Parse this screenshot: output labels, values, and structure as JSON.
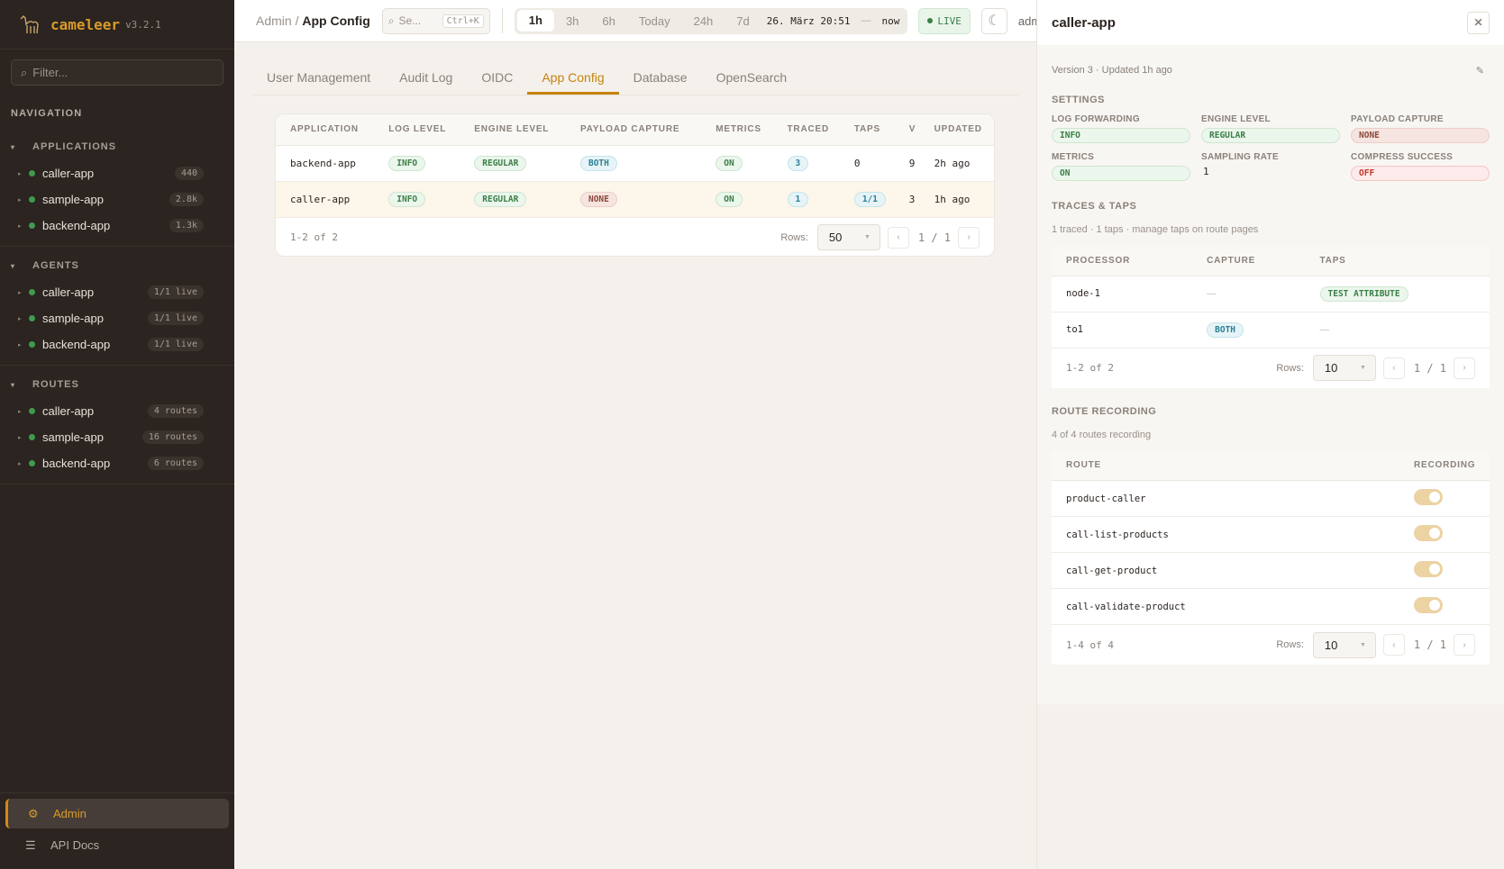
{
  "app": {
    "name": "cameleer",
    "version": "v3.2.1"
  },
  "sidebar": {
    "filter_placeholder": "Filter...",
    "nav_label": "NAVIGATION",
    "sections": [
      {
        "title": "APPLICATIONS",
        "items": [
          {
            "label": "caller-app",
            "badge": "440"
          },
          {
            "label": "sample-app",
            "badge": "2.8k"
          },
          {
            "label": "backend-app",
            "badge": "1.3k"
          }
        ]
      },
      {
        "title": "AGENTS",
        "items": [
          {
            "label": "caller-app",
            "badge": "1/1 live"
          },
          {
            "label": "sample-app",
            "badge": "1/1 live"
          },
          {
            "label": "backend-app",
            "badge": "1/1 live"
          }
        ]
      },
      {
        "title": "ROUTES",
        "items": [
          {
            "label": "caller-app",
            "badge": "4 routes"
          },
          {
            "label": "sample-app",
            "badge": "16 routes"
          },
          {
            "label": "backend-app",
            "badge": "6 routes"
          }
        ]
      }
    ],
    "bottom": [
      {
        "label": "Admin",
        "icon": "gear-icon",
        "active": true
      },
      {
        "label": "API Docs",
        "icon": "list-icon"
      }
    ]
  },
  "header": {
    "breadcrumb": [
      "Admin",
      "App Config"
    ],
    "search_placeholder": "Se...",
    "search_shortcut": "Ctrl+K",
    "time_ranges": [
      "1h",
      "3h",
      "6h",
      "Today",
      "24h",
      "7d"
    ],
    "time_active": "1h",
    "date_from": "26. März 20:51",
    "date_sep": "—",
    "date_to": "now",
    "live": "LIVE",
    "user": "adm"
  },
  "tabs": [
    "User Management",
    "Audit Log",
    "OIDC",
    "App Config",
    "Database",
    "OpenSearch"
  ],
  "active_tab": "App Config",
  "table": {
    "columns": [
      "APPLICATION",
      "LOG LEVEL",
      "ENGINE LEVEL",
      "PAYLOAD CAPTURE",
      "METRICS",
      "TRACED",
      "TAPS",
      "V",
      "UPDATED"
    ],
    "rows": [
      {
        "app": "backend-app",
        "log": "INFO",
        "engine": "REGULAR",
        "payload": "BOTH",
        "metrics": "ON",
        "traced": "3",
        "taps": "0",
        "v": "9",
        "updated": "2h ago"
      },
      {
        "app": "caller-app",
        "log": "INFO",
        "engine": "REGULAR",
        "payload": "NONE",
        "metrics": "ON",
        "traced": "1",
        "taps": "1/1",
        "v": "3",
        "updated": "1h ago"
      }
    ],
    "range": "1-2 of 2",
    "rows_label": "Rows:",
    "rows_value": "50",
    "page": "1 / 1"
  },
  "panel": {
    "title": "caller-app",
    "meta": "Version 3 · Updated 1h  ago",
    "settings_title": "SETTINGS",
    "settings": [
      {
        "label": "LOG FORWARDING",
        "value": "INFO"
      },
      {
        "label": "ENGINE LEVEL",
        "value": "REGULAR"
      },
      {
        "label": "PAYLOAD CAPTURE",
        "value": "NONE"
      },
      {
        "label": "METRICS",
        "value": "ON"
      },
      {
        "label": "SAMPLING RATE",
        "value": "1"
      },
      {
        "label": "COMPRESS SUCCESS",
        "value": "OFF"
      }
    ],
    "traces_title": "TRACES & TAPS",
    "traces_sub": "1 traced · 1 taps · manage taps on route pages",
    "traces_columns": [
      "PROCESSOR",
      "CAPTURE",
      "TAPS"
    ],
    "traces_rows": [
      {
        "processor": "node-1",
        "capture": "—",
        "taps": "TEST ATTRIBUTE"
      },
      {
        "processor": "to1",
        "capture": "BOTH",
        "taps": "—"
      }
    ],
    "traces_range": "1-2 of 2",
    "rows_label": "Rows:",
    "traces_rows_value": "10",
    "traces_page": "1 / 1",
    "recording_title": "ROUTE RECORDING",
    "recording_sub": "4 of 4 routes recording",
    "recording_columns": [
      "ROUTE",
      "RECORDING"
    ],
    "routes": [
      {
        "route": "product-caller",
        "recording": true
      },
      {
        "route": "call-list-products",
        "recording": true
      },
      {
        "route": "call-get-product",
        "recording": true
      },
      {
        "route": "call-validate-product",
        "recording": true
      }
    ],
    "routes_range": "1-4 of 4",
    "routes_rows_value": "10",
    "routes_page": "1 / 1"
  },
  "colors": {
    "accent": "#c6820e",
    "sidebar_bg": "#2b2420",
    "live_dot": "#3f9a4f"
  }
}
